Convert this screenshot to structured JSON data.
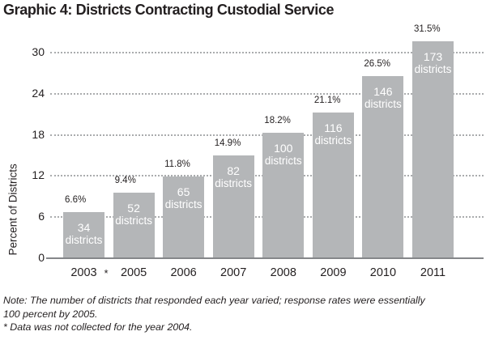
{
  "title": "Graphic 4: Districts Contracting Custodial Service",
  "chart_data": {
    "type": "bar",
    "title": "Graphic 4: Districts Contracting Custodial Service",
    "xlabel": "",
    "ylabel": "Percent of Districts",
    "ylim": [
      0,
      32
    ],
    "yticks": [
      0,
      6,
      12,
      18,
      24,
      30
    ],
    "grid": "dotted horizontal gridlines at each y tick, solid baseline at 0",
    "legend": "none",
    "categories": [
      "2003",
      "2005",
      "2006",
      "2007",
      "2008",
      "2009",
      "2010",
      "2011"
    ],
    "values": [
      6.6,
      9.4,
      11.8,
      14.9,
      18.2,
      21.1,
      26.5,
      31.5
    ],
    "percent_labels": [
      "6.6%",
      "9.4%",
      "11.8%",
      "14.9%",
      "18.2%",
      "21.1%",
      "26.5%",
      "31.5%"
    ],
    "district_counts": [
      "34",
      "52",
      "65",
      "82",
      "100",
      "116",
      "146",
      "173"
    ],
    "unit_label": "districts",
    "x_axis_footnote_marker": "*",
    "bar_color": "#b4b6b8",
    "bar_text_color": "#ffffff",
    "text_color": "#231f20"
  },
  "notes": {
    "line1": "Note: The number of districts that responded each year varied; response rates were essentially",
    "line2": "100 percent by 2005.",
    "line3": "* Data was not collected for the year 2004."
  }
}
